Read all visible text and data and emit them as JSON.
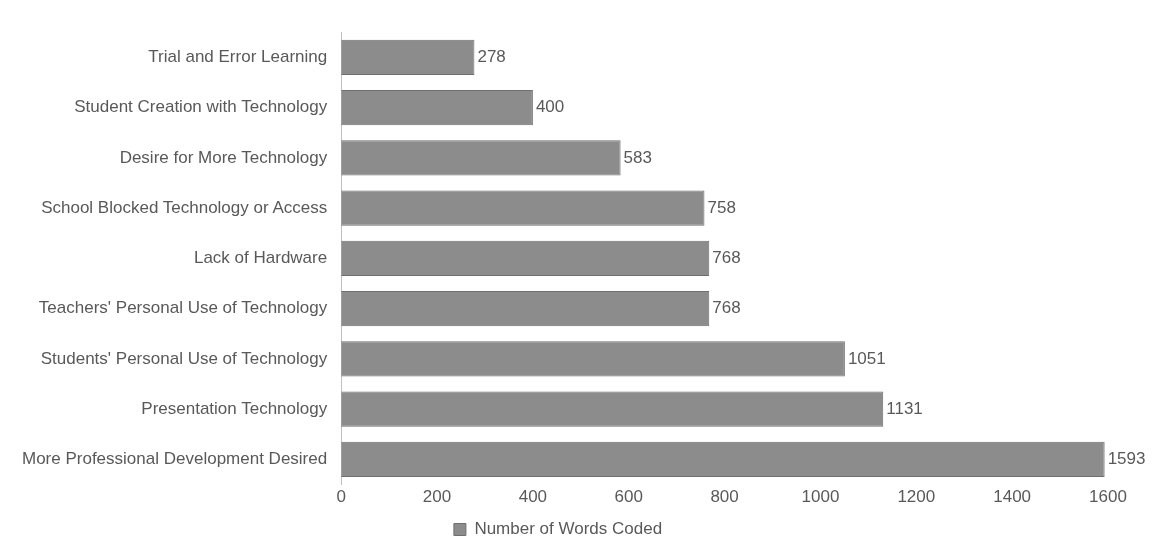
{
  "chart_data": {
    "type": "bar",
    "orientation": "horizontal",
    "categories": [
      "Trial and Error Learning",
      "Student Creation with Technology",
      "Desire for More Technology",
      "School Blocked Technology or Access",
      "Lack of Hardware",
      "Teachers' Personal Use of Technology",
      "Students' Personal Use of Technology",
      "Presentation Technology",
      "More Professional Development Desired"
    ],
    "series": [
      {
        "name": "Number of Words Coded",
        "color": "#8c8c8c",
        "values": [
          278,
          400,
          583,
          758,
          768,
          768,
          1051,
          1131,
          1593
        ]
      }
    ],
    "xlim": [
      0,
      1600
    ],
    "xticks": [
      0,
      200,
      400,
      600,
      800,
      1000,
      1200,
      1400,
      1600
    ],
    "grid": false,
    "legend": "bottom",
    "data_labels": true
  }
}
